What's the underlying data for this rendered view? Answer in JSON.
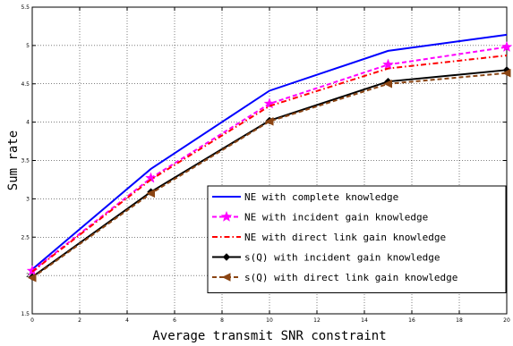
{
  "chart_data": {
    "type": "line",
    "xlabel": "Average transmit SNR constraint",
    "ylabel": "Sum rate",
    "xlim": [
      0,
      20
    ],
    "ylim": [
      1.5,
      5.5
    ],
    "xticks": [
      0,
      2,
      4,
      6,
      8,
      10,
      12,
      14,
      16,
      18,
      20
    ],
    "yticks": [
      1.5,
      2,
      2.5,
      3,
      3.5,
      4,
      4.5,
      5,
      5.5
    ],
    "xtick_labels": [
      "0",
      "2",
      "4",
      "6",
      "8",
      "10",
      "12",
      "14",
      "16",
      "18",
      "20"
    ],
    "ytick_labels": [
      "1.5",
      "2",
      "2.5",
      "3",
      "3.5",
      "4",
      "4.5",
      "5",
      "5.5"
    ],
    "grid": true,
    "legend_position": "bottom-right",
    "x": [
      0,
      5,
      10,
      15,
      20
    ],
    "series": [
      {
        "name": "NE with complete knowledge",
        "values": [
          2.08,
          3.39,
          4.41,
          4.93,
          5.14
        ],
        "color": "#0000ff",
        "dash": "solid",
        "marker": "none"
      },
      {
        "name": "NE with incident gain knowledge",
        "values": [
          2.06,
          3.27,
          4.24,
          4.75,
          4.98
        ],
        "color": "#ff00ff",
        "dash": "dashed",
        "marker": "star"
      },
      {
        "name": "NE with direct link gain knowledge",
        "values": [
          2.05,
          3.25,
          4.21,
          4.7,
          4.87
        ],
        "color": "#ff0000",
        "dash": "dashdot",
        "marker": "none"
      },
      {
        "name": "s(Q) with incident gain knowledge",
        "values": [
          1.98,
          3.09,
          4.02,
          4.53,
          4.68
        ],
        "color": "#000000",
        "dash": "solid",
        "marker": "diamond"
      },
      {
        "name": "s(Q) with direct link gain knowledge",
        "values": [
          1.97,
          3.07,
          4.01,
          4.5,
          4.64
        ],
        "color": "#8b4513",
        "dash": "dashed",
        "marker": "triangle-left"
      }
    ]
  }
}
